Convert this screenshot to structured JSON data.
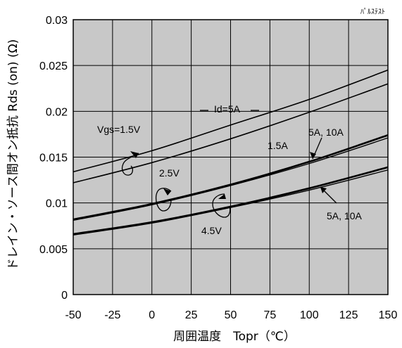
{
  "chart_data": {
    "type": "line",
    "note": "ﾊﾟﾙｽﾃｽﾄ",
    "xlabel": "周囲温度　Topr（℃）",
    "ylabel": "ドレイン・ソース間オン抵抗  Rds (on)  (Ω)",
    "xlim": [
      -50,
      150
    ],
    "ylim": [
      0,
      0.03
    ],
    "xticks": [
      -50,
      -25,
      0,
      25,
      50,
      75,
      100,
      125,
      150
    ],
    "xtick_labels": [
      "-50",
      "-25",
      "0",
      "25",
      "50",
      "75",
      "100",
      "125",
      "150"
    ],
    "yticks": [
      0,
      0.005,
      0.01,
      0.015,
      0.02,
      0.025,
      0.03
    ],
    "ytick_labels": [
      "0",
      "0.005",
      "0.01",
      "0.015",
      "0.02",
      "0.025",
      "0.03"
    ],
    "grid": true,
    "plot_background": "#c8c8c8",
    "line_color": "#000000",
    "series": [
      {
        "x": [
          -50,
          0,
          50,
          100,
          150
        ],
        "values": [
          0.0134,
          0.0157,
          0.0185,
          0.0213,
          0.0245
        ],
        "width": 1.6
      },
      {
        "x": [
          -50,
          0,
          50,
          100,
          150
        ],
        "values": [
          0.0122,
          0.0144,
          0.017,
          0.0199,
          0.023
        ],
        "width": 1.6
      },
      {
        "x": [
          -50,
          0,
          50,
          100,
          150
        ],
        "values": [
          0.0082,
          0.0099,
          0.012,
          0.0145,
          0.0174
        ],
        "width": 2.6
      },
      {
        "x": [
          -50,
          0,
          50,
          100,
          150
        ],
        "values": [
          0.0081,
          0.0098,
          0.0119,
          0.0143,
          0.0171
        ],
        "width": 1.4
      },
      {
        "x": [
          -50,
          0,
          50,
          100,
          150
        ],
        "values": [
          0.0066,
          0.0079,
          0.0096,
          0.0116,
          0.0139
        ],
        "width": 2.6
      },
      {
        "x": [
          -50,
          0,
          50,
          100,
          150
        ],
        "values": [
          0.0065,
          0.0078,
          0.0095,
          0.0114,
          0.0136
        ],
        "width": 1.4
      }
    ],
    "annotations": {
      "id_label": "Id=5A",
      "vgs15": "Vgs=1.5V",
      "id15": "1.5A",
      "id5_10_upper": "5A, 10A",
      "v25": "2.5V",
      "v45": "4.5V",
      "id5_10_lower": "5A, 10A"
    }
  }
}
